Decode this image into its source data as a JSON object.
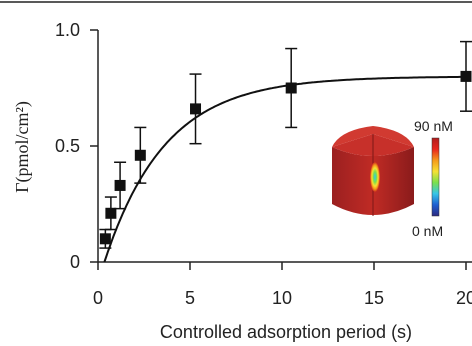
{
  "chart_data": {
    "type": "scatter",
    "title": "",
    "xlabel": "Controlled adsorption period (s)",
    "ylabel": "Γ(pmol/cm²)",
    "xlim": [
      0,
      20
    ],
    "ylim": [
      0,
      1.0
    ],
    "x_ticks": [
      0,
      5,
      10,
      15,
      20
    ],
    "x_tick_labels": [
      "0",
      "5",
      "10",
      "15",
      "20"
    ],
    "y_ticks": [
      0,
      0.5,
      1.0
    ],
    "y_tick_labels": [
      "0",
      "0.5",
      "1.0"
    ],
    "grid": false,
    "legend": "none",
    "series": [
      {
        "points": [
          {
            "x": 0.4,
            "y": 0.1,
            "err": 0.04
          },
          {
            "x": 0.7,
            "y": 0.21,
            "err": 0.07
          },
          {
            "x": 1.2,
            "y": 0.33,
            "err": 0.1
          },
          {
            "x": 2.3,
            "y": 0.46,
            "err": 0.12
          },
          {
            "x": 5.3,
            "y": 0.66,
            "err": 0.15
          },
          {
            "x": 10.5,
            "y": 0.75,
            "err": 0.17
          },
          {
            "x": 20.0,
            "y": 0.8,
            "err": 0.15
          }
        ]
      }
    ],
    "fit_curve": {
      "model": "saturation",
      "a": 0.8,
      "tau": 3.3,
      "x0": 0.35
    },
    "inset": {
      "max_label": "90 nM",
      "min_label": "0 nM",
      "body_color": "#b52a25",
      "colormap": [
        "#2c2a80",
        "#1e5fd1",
        "#36c5e8",
        "#7be04c",
        "#f6e135",
        "#f59a1c",
        "#e8261d",
        "#b01e1e"
      ]
    }
  }
}
